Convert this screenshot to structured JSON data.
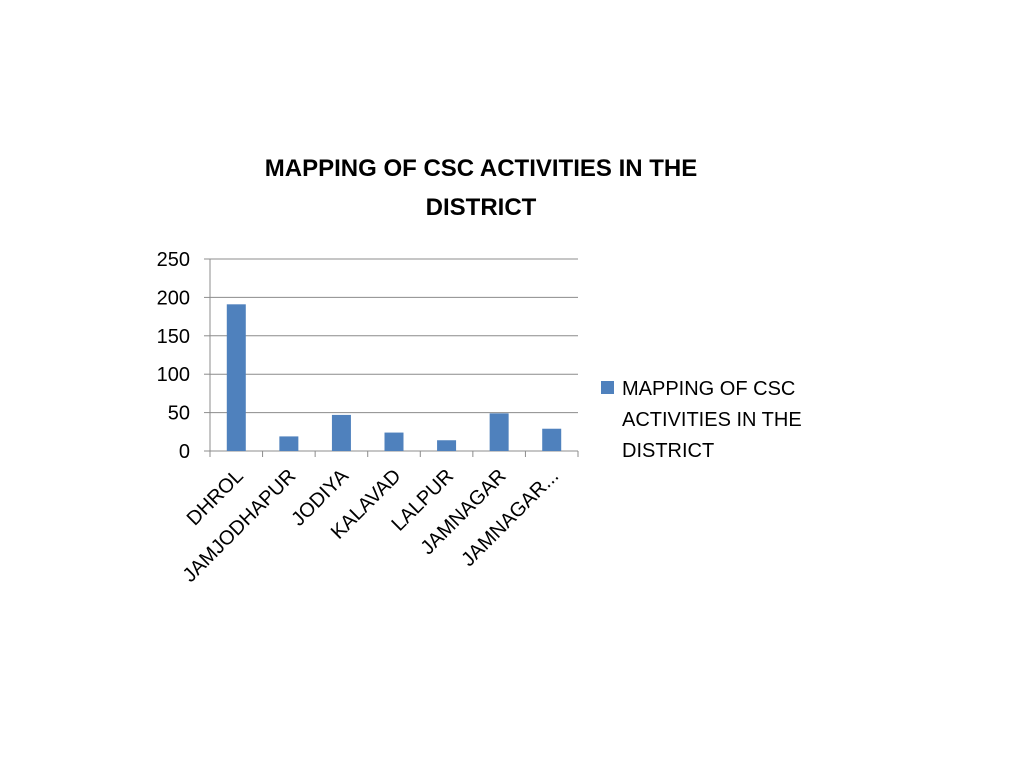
{
  "chart_data": {
    "type": "bar",
    "title_lines": [
      "MAPPING OF CSC ACTIVITIES IN THE",
      "DISTRICT"
    ],
    "categories": [
      "DHROL",
      "JAMJODHAPUR",
      "JODIYA",
      "KALAVAD",
      "LALPUR",
      "JAMNAGAR",
      "JAMNAGAR..."
    ],
    "series": [
      {
        "name": "MAPPING OF CSC ACTIVITIES IN THE DISTRICT",
        "color": "#4f81bd",
        "values": [
          191,
          19,
          47,
          24,
          14,
          49,
          29
        ]
      }
    ],
    "legend_lines": [
      "MAPPING OF CSC",
      "ACTIVITIES IN THE",
      "DISTRICT"
    ],
    "yticks": [
      0,
      50,
      100,
      150,
      200,
      250
    ],
    "ylim": [
      0,
      250
    ],
    "grid": true,
    "legend_position": "right"
  }
}
